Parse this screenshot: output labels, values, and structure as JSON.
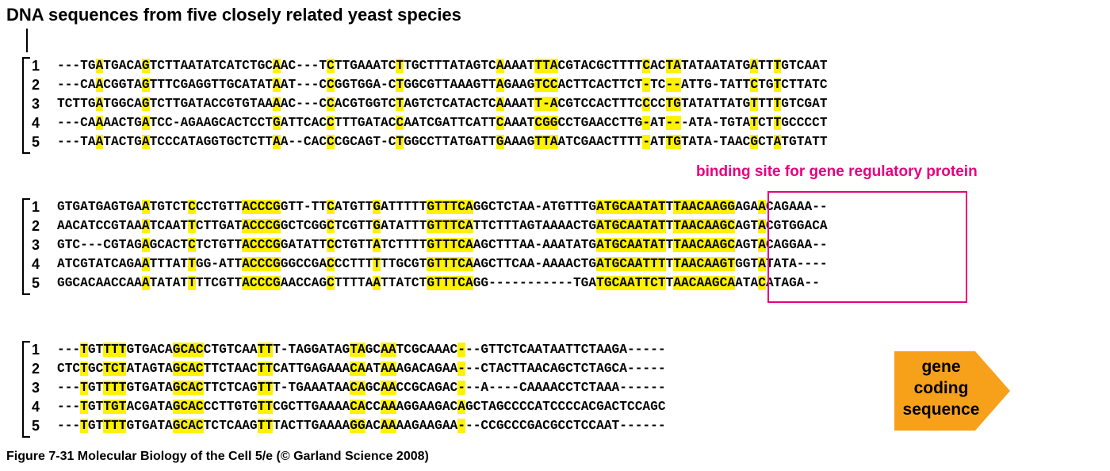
{
  "title": "DNA sequences from five closely related yeast species",
  "binding_label": "binding site for gene regulatory protein",
  "gene_label_lines": [
    "gene",
    "coding",
    "sequence"
  ],
  "caption": "Figure 7-31  Molecular Biology of the Cell 5/e (© Garland Science 2008)",
  "colors": {
    "highlight": "#fff200",
    "binding": "#e6007e",
    "arrow": "#f7a11a"
  },
  "blocks": [
    {
      "rows": [
        {
          "num": "1",
          "seq": "---TGATGACAGTCTTAATATCATCTGCAAC---TCTTGAAATCTTGCTTTATAGTCAAAATTTACGTACGCTTTTCACTATATAATATGATTTGTCAAT"
        },
        {
          "num": "2",
          "seq": "---CAACGGTAGTTTCGAGGTTGCATATAAT---CCGGTGGA-CTGGCGTTAAAGTTAGAAGTCCACTTCACTTCT-TC--ATTG-TATTCTGTCTTATC"
        },
        {
          "num": "3",
          "seq": "TCTTGATGGCAGTCTTGATACCGTGTAAAAC---CCACGTGGTCTAGTCTCATACTCAAAATT-ACGTCCACTTTCCCCTGTATATTATGTTTTGTCGAT"
        },
        {
          "num": "4",
          "seq": "---CAAAACTGATCC-AGAAGCACTCCTGATTCACCTTTGATACCAATCGATTCATTCAAATCGGCCTGAACCTTG-AT---ATA-TGTATCTTGCCCCT"
        },
        {
          "num": "5",
          "seq": "---TAATACTGATCCCATAGGTGCTCTTAA--CACCCGCAGT-CTGGCCTTATGATTGAAAGTTAATCGAACTTTT-ATTGTATA-TAACGCTATGTATT"
        }
      ]
    },
    {
      "rows": [
        {
          "num": "1",
          "seq": "GTGATGAGTGAATGTCTCCCTGTTACCCGGTT-TTCATGTTGATTTTTGTTTCAGGCTCTAA-ATGTTTGATGCAATATTTAACAAGGAGAACAGAAA--"
        },
        {
          "num": "2",
          "seq": "AACATCCGTAAATCAATTCTTGATACCCGGCTCGGCTCGTTGATATTTGTTTCATTCTTTAGTAAAACTGATGCAATATTTAACAAGCAGTACGTGGACA"
        },
        {
          "num": "3",
          "seq": "GTC---CGTAGAGCACTCTCTGTTACCCGGATATTCCTGTTATCTTTTGTTTCAAGCTTTAA-AAATATGATGCAATATTTAACAAGCAGTACAGGAA--"
        },
        {
          "num": "4",
          "seq": "ATCGTATCAGAATTTATTGG-ATTACCCGGGCCGACCCTTTTTTGCGTGTTTCAAGCTTCAA-AAAACTGATGCAATTTTTAACAAGTGGTATATA----"
        },
        {
          "num": "5",
          "seq": "GGCACAACCAAATATATTTTCGTTACCCGAACCAGCTTTTAATTATCTGTTTCAGG-----------TGATGCAATTCTTAACAAGCAATACATAGA--"
        }
      ]
    },
    {
      "rows": [
        {
          "num": "1",
          "seq": "---TGTTTTGTGACAGCACCTGTCAATTT-TAGGATAGTAGCAATCGCAAAC---GTTCTCAATAATTCTAAGA-----"
        },
        {
          "num": "2",
          "seq": "CTCTGCTCTATAGTAGCACTTCTAACTTCATTGAGAAACAATAAAGACAGAA---CTACTTAACAGCTCTAGCA-----"
        },
        {
          "num": "3",
          "seq": "---TGTTTTGTGATAGCACTTCTCAGTTT-TGAAATAACAGCAACCGCAGAC---A----CAAAACCTCTAAA------"
        },
        {
          "num": "4",
          "seq": "---TGTTGTACGATAGCACCCTTGTGTTCGCTTGAAAACACCAAAGGAAGACAGCTAGCCCCATCCCCACGACTCCAGC"
        },
        {
          "num": "5",
          "seq": "---TGTTTTGTGATAGCACTCTCAAGTTTACTTGAAAAGGACAAAAGAAGAA---CCGCCCGACGCCTCCAAT------"
        }
      ]
    }
  ]
}
